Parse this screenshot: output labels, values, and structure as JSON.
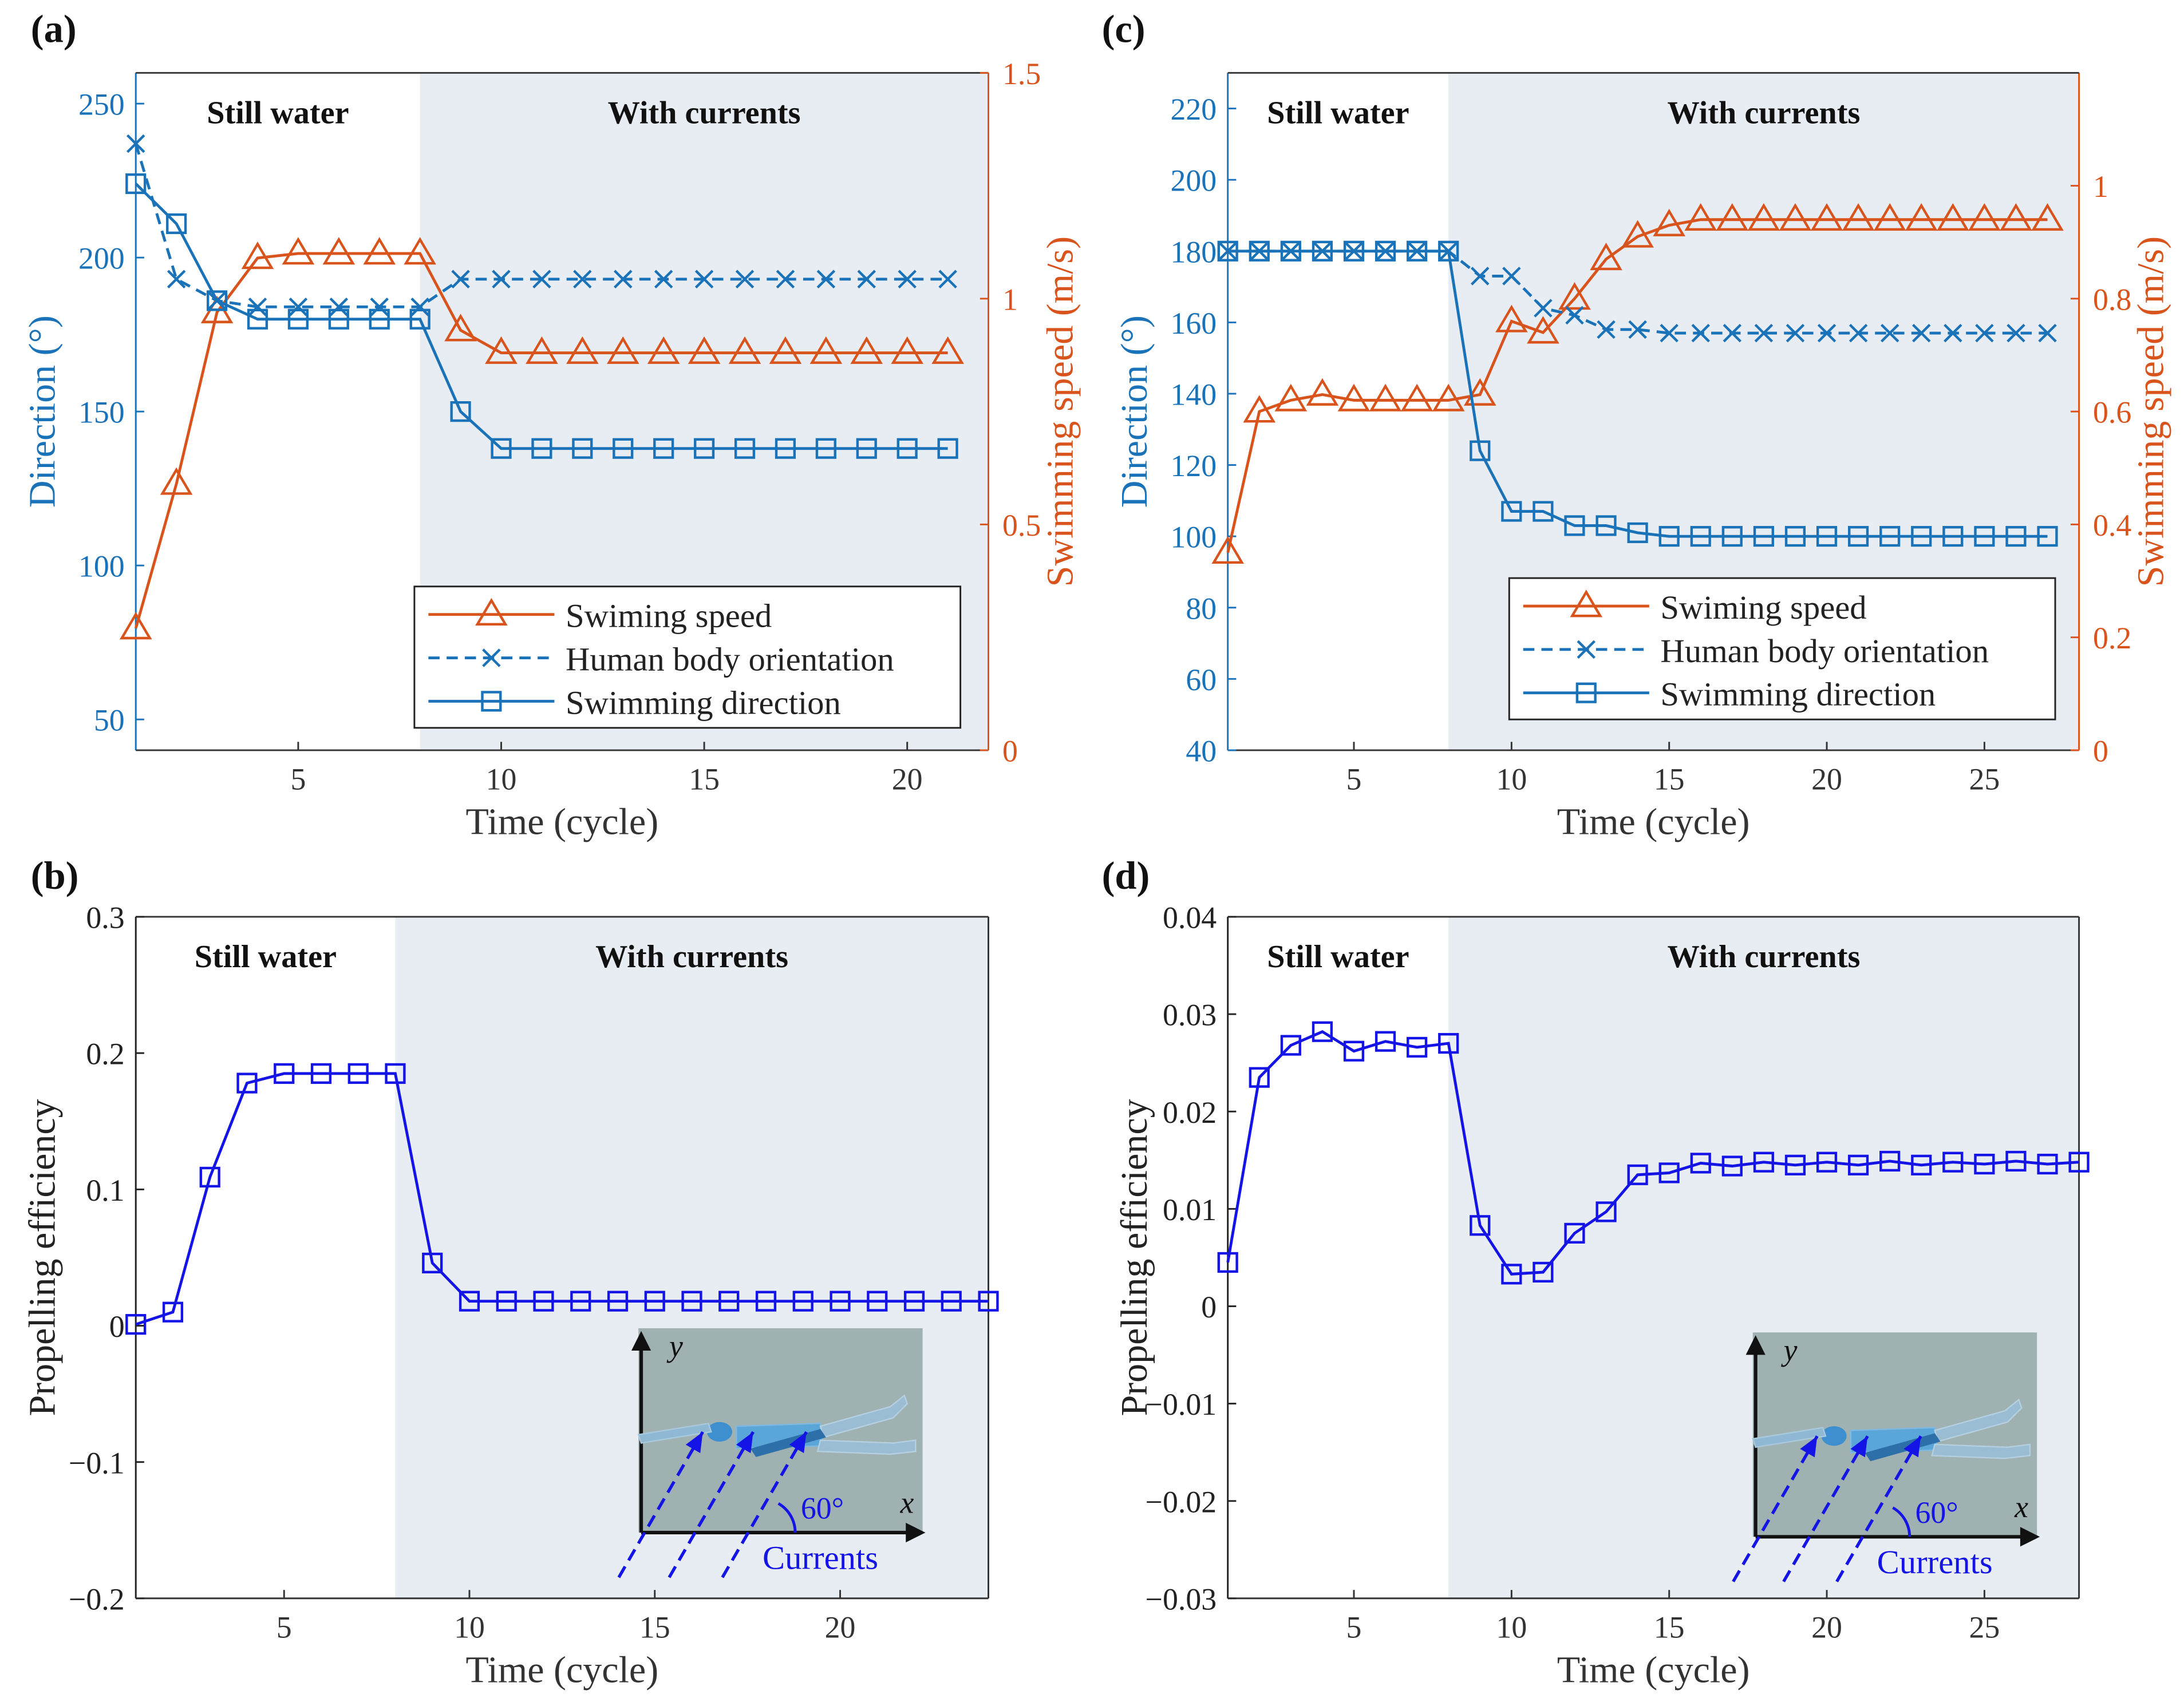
{
  "colors": {
    "blue_axis": "#1a72b8",
    "orange": "#d9541c",
    "eff_blue": "#1414e6",
    "shade": "#e8ecf3",
    "inset_bg": "#9fb1b0",
    "arrow_blue": "#1414e6"
  },
  "chart_data": [
    {
      "id": "a",
      "type": "line",
      "panel_label": "(a)",
      "xlabel": "Time (cycle)",
      "ylabel": "Direction (°)",
      "ylabel_right": "Swimming speed (m/s)",
      "xlim": [
        1,
        22
      ],
      "ylim": [
        40,
        260
      ],
      "ylim_right": [
        0,
        1.5
      ],
      "xticks": [
        5,
        10,
        15,
        20
      ],
      "yticks": [
        50,
        100,
        150,
        200,
        250
      ],
      "yticks_right": [
        0,
        0.5,
        1,
        1.5
      ],
      "ytick_labels_right": [
        "0",
        "0.5",
        "1",
        "1.5"
      ],
      "shade_from": 8,
      "region_labels": [
        "Still water",
        "With currents"
      ],
      "legend": [
        "Swiming speed",
        "Human body orientation",
        "Swimming direction"
      ],
      "x": [
        1,
        2,
        3,
        4,
        5,
        6,
        7,
        8,
        9,
        10,
        11,
        12,
        13,
        14,
        15,
        16,
        17,
        18,
        19,
        20,
        21
      ],
      "series": [
        {
          "name": "Swiming speed",
          "axis": "right",
          "marker": "triangle",
          "dash": false,
          "values": [
            0.27,
            0.59,
            0.97,
            1.09,
            1.1,
            1.1,
            1.1,
            1.1,
            0.93,
            0.88,
            0.88,
            0.88,
            0.88,
            0.88,
            0.88,
            0.88,
            0.88,
            0.88,
            0.88,
            0.88,
            0.88
          ]
        },
        {
          "name": "Human body orientation",
          "axis": "left",
          "marker": "x",
          "dash": true,
          "values": [
            237,
            193,
            186,
            184,
            184,
            184,
            184,
            184,
            193,
            193,
            193,
            193,
            193,
            193,
            193,
            193,
            193,
            193,
            193,
            193,
            193
          ]
        },
        {
          "name": "Swimming direction",
          "axis": "left",
          "marker": "square",
          "dash": false,
          "values": [
            224,
            211,
            186,
            180,
            180,
            180,
            180,
            180,
            150,
            138,
            138,
            138,
            138,
            138,
            138,
            138,
            138,
            138,
            138,
            138,
            138
          ]
        }
      ]
    },
    {
      "id": "b",
      "type": "line",
      "panel_label": "(b)",
      "xlabel": "Time (cycle)",
      "ylabel": "Propelling efficiency",
      "xlim": [
        1,
        24
      ],
      "ylim": [
        -0.2,
        0.3
      ],
      "xticks": [
        5,
        10,
        15,
        20
      ],
      "yticks": [
        -0.2,
        -0.1,
        0,
        0.1,
        0.2,
        0.3
      ],
      "ytick_labels": [
        "−0.2",
        "−0.1",
        "0",
        "0.1",
        "0.2",
        "0.3"
      ],
      "shade_from": 8,
      "region_labels": [
        "Still water",
        "With currents"
      ],
      "inset": {
        "x_axis": "x",
        "y_axis": "y",
        "angle_label": "60°",
        "currents_label": "Currents"
      },
      "x": [
        1,
        2,
        3,
        4,
        5,
        6,
        7,
        8,
        9,
        10,
        11,
        12,
        13,
        14,
        15,
        16,
        17,
        18,
        19,
        20,
        21,
        22,
        23,
        24
      ],
      "series": [
        {
          "name": "Propelling efficiency",
          "marker": "square",
          "values": [
            0.001,
            0.01,
            0.109,
            0.178,
            0.185,
            0.185,
            0.185,
            0.185,
            0.046,
            0.018,
            0.018,
            0.018,
            0.018,
            0.018,
            0.018,
            0.018,
            0.018,
            0.018,
            0.018,
            0.018,
            0.018,
            0.018,
            0.018,
            0.018
          ]
        }
      ]
    },
    {
      "id": "c",
      "type": "line",
      "panel_label": "(c)",
      "xlabel": "Time (cycle)",
      "ylabel": "Direction (°)",
      "ylabel_right": "Swimming speed (m/s)",
      "xlim": [
        1,
        28
      ],
      "ylim": [
        40,
        230
      ],
      "ylim_right": [
        0,
        1.2
      ],
      "xticks": [
        5,
        10,
        15,
        20,
        25
      ],
      "yticks": [
        40,
        60,
        80,
        100,
        120,
        140,
        160,
        180,
        200,
        220
      ],
      "yticks_right": [
        0,
        0.2,
        0.4,
        0.6,
        0.8,
        1
      ],
      "ytick_labels_right": [
        "0",
        "0.2",
        "0.4",
        "0.6",
        "0.8",
        "1"
      ],
      "shade_from": 8,
      "region_labels": [
        "Still water",
        "With currents"
      ],
      "legend": [
        "Swiming speed",
        "Human body orientation",
        "Swimming direction"
      ],
      "x": [
        1,
        2,
        3,
        4,
        5,
        6,
        7,
        8,
        9,
        10,
        11,
        12,
        13,
        14,
        15,
        16,
        17,
        18,
        19,
        20,
        21,
        22,
        23,
        24,
        25,
        26,
        27
      ],
      "series": [
        {
          "name": "Swiming speed",
          "axis": "right",
          "marker": "triangle",
          "dash": false,
          "values": [
            0.35,
            0.6,
            0.62,
            0.63,
            0.62,
            0.62,
            0.62,
            0.62,
            0.63,
            0.76,
            0.74,
            0.8,
            0.87,
            0.91,
            0.93,
            0.94,
            0.94,
            0.94,
            0.94,
            0.94,
            0.94,
            0.94,
            0.94,
            0.94,
            0.94,
            0.94,
            0.94
          ]
        },
        {
          "name": "Human body orientation",
          "axis": "left",
          "marker": "x",
          "dash": true,
          "values": [
            180,
            180,
            180,
            180,
            180,
            180,
            180,
            180,
            173,
            173,
            164,
            162,
            158,
            158,
            157,
            157,
            157,
            157,
            157,
            157,
            157,
            157,
            157,
            157,
            157,
            157,
            157
          ]
        },
        {
          "name": "Swimming direction",
          "axis": "left",
          "marker": "square",
          "dash": false,
          "values": [
            180,
            180,
            180,
            180,
            180,
            180,
            180,
            180,
            124,
            107,
            107,
            103,
            103,
            101,
            100,
            100,
            100,
            100,
            100,
            100,
            100,
            100,
            100,
            100,
            100,
            100,
            100
          ]
        }
      ]
    },
    {
      "id": "d",
      "type": "line",
      "panel_label": "(d)",
      "xlabel": "Time (cycle)",
      "ylabel": "Propelling efficiency",
      "xlim": [
        1,
        28
      ],
      "ylim": [
        -0.03,
        0.04
      ],
      "xticks": [
        5,
        10,
        15,
        20,
        25
      ],
      "yticks": [
        -0.03,
        -0.02,
        -0.01,
        0,
        0.01,
        0.02,
        0.03,
        0.04
      ],
      "ytick_labels": [
        "−0.03",
        "−0.02",
        "−0.01",
        "0",
        "0.01",
        "0.02",
        "0.03",
        "0.04"
      ],
      "shade_from": 8,
      "region_labels": [
        "Still water",
        "With currents"
      ],
      "inset": {
        "x_axis": "x",
        "y_axis": "y",
        "angle_label": "60°",
        "currents_label": "Currents"
      },
      "x": [
        1,
        2,
        3,
        4,
        5,
        6,
        7,
        8,
        9,
        10,
        11,
        12,
        13,
        14,
        15,
        16,
        17,
        18,
        19,
        20,
        21,
        22,
        23,
        24,
        25,
        26,
        27,
        28
      ],
      "series": [
        {
          "name": "Propelling efficiency",
          "marker": "square",
          "values": [
            0.0045,
            0.0235,
            0.0268,
            0.0282,
            0.0262,
            0.0272,
            0.0266,
            0.027,
            0.0083,
            0.0033,
            0.0035,
            0.0075,
            0.0097,
            0.0135,
            0.0137,
            0.0147,
            0.0144,
            0.0148,
            0.0145,
            0.0148,
            0.0145,
            0.0149,
            0.0145,
            0.0148,
            0.0146,
            0.0149,
            0.0146,
            0.0148
          ]
        }
      ]
    }
  ]
}
